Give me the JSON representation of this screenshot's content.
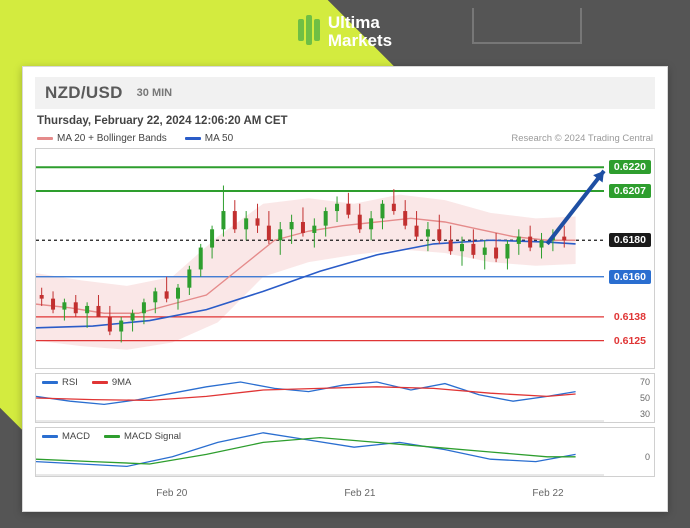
{
  "brand": {
    "name_line1": "Ultima",
    "name_line2": "Markets"
  },
  "header": {
    "pair": "NZD/USD",
    "timeframe": "30 MIN"
  },
  "timestamp": "Thursday, February 22, 2024 12:06:20 AM CET",
  "legend": {
    "ma20": "MA 20 + Bollinger Bands",
    "ma50": "MA 50",
    "attribution": "Research © 2024 Trading Central"
  },
  "colors": {
    "bg_dark": "#555555",
    "lime": "#d3eb3f",
    "brand_green": "#6fbf44",
    "card_border": "#d8d8d8",
    "panel_border": "#d0d0d0",
    "ma20": "#e58b8b",
    "band_fill": "#f6d4d4",
    "ma50": "#2a5cc8",
    "line_green": "#2e9e2e",
    "line_blue": "#2a6ed0",
    "line_red": "#e03535",
    "line_black": "#1a1a1a",
    "grid": "#e4e4e4",
    "candle_up": "#2e9e2e",
    "candle_down": "#c23030",
    "arrow": "#1e4fa3"
  },
  "main": {
    "ymin": 0.611,
    "ymax": 0.623,
    "levels": [
      {
        "v": 0.622,
        "color": "#2e9e2e",
        "label": "0.6220",
        "label_bg": "#2e9e2e",
        "label_fg": "#ffffff"
      },
      {
        "v": 0.6207,
        "color": "#2e9e2e",
        "label": "0.6207",
        "label_bg": "#2e9e2e",
        "label_fg": "#ffffff"
      },
      {
        "v": 0.618,
        "color": "#1a1a1a",
        "label": "0.6180",
        "label_bg": "#1a1a1a",
        "label_fg": "#ffffff",
        "dashed": true
      },
      {
        "v": 0.616,
        "color": "#2a6ed0",
        "label": "0.6160",
        "label_bg": "#2a6ed0",
        "label_fg": "#ffffff"
      },
      {
        "v": 0.6138,
        "color": "#e03535",
        "label": "0.6138",
        "label_bg": "#ffffff",
        "label_fg": "#e03535"
      },
      {
        "v": 0.6125,
        "color": "#e03535",
        "label": "0.6125",
        "label_bg": "#ffffff",
        "label_fg": "#e03535"
      }
    ],
    "ma20": [
      [
        0,
        0.6145
      ],
      [
        6,
        0.6143
      ],
      [
        12,
        0.614
      ],
      [
        18,
        0.614
      ],
      [
        24,
        0.6145
      ],
      [
        30,
        0.615
      ],
      [
        36,
        0.6165
      ],
      [
        42,
        0.618
      ],
      [
        48,
        0.6185
      ],
      [
        54,
        0.6188
      ],
      [
        60,
        0.619
      ],
      [
        66,
        0.6192
      ],
      [
        72,
        0.619
      ],
      [
        78,
        0.6186
      ],
      [
        84,
        0.6182
      ],
      [
        90,
        0.618
      ],
      [
        95,
        0.618
      ]
    ],
    "ma50": [
      [
        0,
        0.6132
      ],
      [
        10,
        0.6133
      ],
      [
        20,
        0.6136
      ],
      [
        30,
        0.6142
      ],
      [
        40,
        0.6152
      ],
      [
        50,
        0.6163
      ],
      [
        60,
        0.6172
      ],
      [
        70,
        0.6178
      ],
      [
        80,
        0.618
      ],
      [
        90,
        0.6179
      ],
      [
        95,
        0.6178
      ]
    ],
    "band_upper": [
      [
        0,
        0.6162
      ],
      [
        8,
        0.6158
      ],
      [
        16,
        0.6155
      ],
      [
        24,
        0.616
      ],
      [
        32,
        0.6182
      ],
      [
        40,
        0.62
      ],
      [
        48,
        0.6203
      ],
      [
        56,
        0.62
      ],
      [
        64,
        0.6205
      ],
      [
        72,
        0.6202
      ],
      [
        80,
        0.6195
      ],
      [
        88,
        0.6192
      ],
      [
        95,
        0.6193
      ]
    ],
    "band_lower": [
      [
        0,
        0.6125
      ],
      [
        8,
        0.6122
      ],
      [
        16,
        0.612
      ],
      [
        24,
        0.6124
      ],
      [
        32,
        0.6135
      ],
      [
        40,
        0.616
      ],
      [
        48,
        0.6168
      ],
      [
        56,
        0.6172
      ],
      [
        64,
        0.6175
      ],
      [
        72,
        0.6173
      ],
      [
        80,
        0.6168
      ],
      [
        88,
        0.6166
      ],
      [
        95,
        0.6167
      ]
    ],
    "candles": [
      [
        1,
        0.615,
        0.6154,
        0.6144,
        0.6148
      ],
      [
        3,
        0.6148,
        0.6152,
        0.614,
        0.6142
      ],
      [
        5,
        0.6142,
        0.6148,
        0.6136,
        0.6146
      ],
      [
        7,
        0.6146,
        0.615,
        0.6138,
        0.614
      ],
      [
        9,
        0.614,
        0.6146,
        0.6132,
        0.6144
      ],
      [
        11,
        0.6144,
        0.615,
        0.6138,
        0.6138
      ],
      [
        13,
        0.6138,
        0.6144,
        0.6128,
        0.613
      ],
      [
        15,
        0.613,
        0.6138,
        0.6124,
        0.6136
      ],
      [
        17,
        0.6136,
        0.6142,
        0.613,
        0.614
      ],
      [
        19,
        0.614,
        0.6148,
        0.6134,
        0.6146
      ],
      [
        21,
        0.6146,
        0.6154,
        0.614,
        0.6152
      ],
      [
        23,
        0.6152,
        0.616,
        0.6146,
        0.6148
      ],
      [
        25,
        0.6148,
        0.6156,
        0.6142,
        0.6154
      ],
      [
        27,
        0.6154,
        0.6166,
        0.615,
        0.6164
      ],
      [
        29,
        0.6164,
        0.6178,
        0.616,
        0.6176
      ],
      [
        31,
        0.6176,
        0.6188,
        0.617,
        0.6186
      ],
      [
        33,
        0.6186,
        0.621,
        0.6182,
        0.6196
      ],
      [
        35,
        0.6196,
        0.6202,
        0.6184,
        0.6186
      ],
      [
        37,
        0.6186,
        0.6196,
        0.618,
        0.6192
      ],
      [
        39,
        0.6192,
        0.62,
        0.6184,
        0.6188
      ],
      [
        41,
        0.6188,
        0.6196,
        0.6178,
        0.618
      ],
      [
        43,
        0.618,
        0.619,
        0.6172,
        0.6186
      ],
      [
        45,
        0.6186,
        0.6194,
        0.6178,
        0.619
      ],
      [
        47,
        0.619,
        0.6198,
        0.6182,
        0.6184
      ],
      [
        49,
        0.6184,
        0.6192,
        0.6176,
        0.6188
      ],
      [
        51,
        0.6188,
        0.6198,
        0.6182,
        0.6196
      ],
      [
        53,
        0.6196,
        0.6204,
        0.619,
        0.62
      ],
      [
        55,
        0.62,
        0.6206,
        0.6192,
        0.6194
      ],
      [
        57,
        0.6194,
        0.62,
        0.6184,
        0.6186
      ],
      [
        59,
        0.6186,
        0.6196,
        0.618,
        0.6192
      ],
      [
        61,
        0.6192,
        0.6202,
        0.6186,
        0.62
      ],
      [
        63,
        0.62,
        0.6208,
        0.6194,
        0.6196
      ],
      [
        65,
        0.6196,
        0.6202,
        0.6186,
        0.6188
      ],
      [
        67,
        0.6188,
        0.6196,
        0.618,
        0.6182
      ],
      [
        69,
        0.6182,
        0.619,
        0.6174,
        0.6186
      ],
      [
        71,
        0.6186,
        0.6194,
        0.6178,
        0.618
      ],
      [
        73,
        0.618,
        0.6188,
        0.6172,
        0.6174
      ],
      [
        75,
        0.6174,
        0.6182,
        0.6166,
        0.6178
      ],
      [
        77,
        0.6178,
        0.6186,
        0.617,
        0.6172
      ],
      [
        79,
        0.6172,
        0.618,
        0.6164,
        0.6176
      ],
      [
        81,
        0.6176,
        0.6184,
        0.6168,
        0.617
      ],
      [
        83,
        0.617,
        0.618,
        0.6164,
        0.6178
      ],
      [
        85,
        0.6178,
        0.6186,
        0.6172,
        0.6182
      ],
      [
        87,
        0.6182,
        0.6188,
        0.6174,
        0.6176
      ],
      [
        89,
        0.6176,
        0.6184,
        0.617,
        0.618
      ],
      [
        91,
        0.618,
        0.6186,
        0.6174,
        0.6182
      ],
      [
        93,
        0.6182,
        0.6188,
        0.6176,
        0.618
      ]
    ],
    "arrow": {
      "from": [
        90,
        0.6178
      ],
      "to": [
        100,
        0.6218
      ]
    },
    "xticks": [
      {
        "x": 24,
        "label": "Feb 20"
      },
      {
        "x": 57,
        "label": "Feb 21"
      },
      {
        "x": 90,
        "label": "Feb 22"
      }
    ]
  },
  "rsi": {
    "legend": {
      "a": "RSI",
      "b": "9MA"
    },
    "ymin": 20,
    "ymax": 80,
    "ticks": [
      70,
      50,
      30
    ],
    "rsi": [
      [
        0,
        52
      ],
      [
        6,
        46
      ],
      [
        12,
        42
      ],
      [
        18,
        48
      ],
      [
        24,
        56
      ],
      [
        30,
        64
      ],
      [
        36,
        70
      ],
      [
        42,
        62
      ],
      [
        48,
        58
      ],
      [
        54,
        66
      ],
      [
        60,
        70
      ],
      [
        66,
        60
      ],
      [
        72,
        68
      ],
      [
        78,
        54
      ],
      [
        84,
        46
      ],
      [
        90,
        52
      ],
      [
        95,
        58
      ]
    ],
    "ma": [
      [
        0,
        50
      ],
      [
        10,
        48
      ],
      [
        20,
        47
      ],
      [
        30,
        52
      ],
      [
        40,
        60
      ],
      [
        50,
        62
      ],
      [
        60,
        64
      ],
      [
        70,
        62
      ],
      [
        80,
        56
      ],
      [
        90,
        52
      ],
      [
        95,
        55
      ]
    ]
  },
  "macd": {
    "legend": {
      "a": "MACD",
      "b": "MACD Signal"
    },
    "ymin": -0.0008,
    "ymax": 0.0012,
    "tick_label": "0",
    "macd": [
      [
        0,
        -0.0002
      ],
      [
        8,
        -0.0003
      ],
      [
        16,
        -0.0004
      ],
      [
        24,
        0.0
      ],
      [
        32,
        0.0006
      ],
      [
        40,
        0.001
      ],
      [
        48,
        0.0007
      ],
      [
        56,
        0.0004
      ],
      [
        64,
        0.0006
      ],
      [
        72,
        0.0003
      ],
      [
        80,
        -0.0001
      ],
      [
        88,
        -0.0002
      ],
      [
        95,
        0.0001
      ]
    ],
    "signal": [
      [
        0,
        -0.0001
      ],
      [
        10,
        -0.0002
      ],
      [
        20,
        -0.0003
      ],
      [
        30,
        0.0001
      ],
      [
        40,
        0.0006
      ],
      [
        50,
        0.0008
      ],
      [
        60,
        0.0006
      ],
      [
        70,
        0.0004
      ],
      [
        80,
        0.0002
      ],
      [
        90,
        0.0
      ],
      [
        95,
        0.0
      ]
    ]
  }
}
